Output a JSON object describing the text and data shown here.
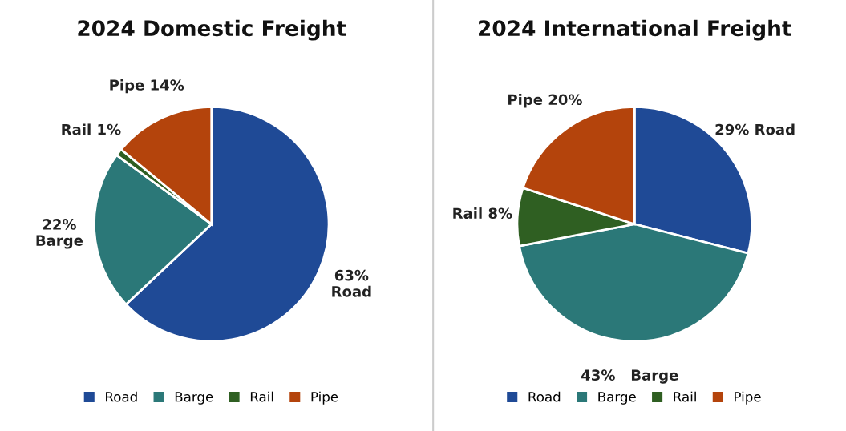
{
  "chart_data": [
    {
      "type": "pie",
      "title": "2024 Domestic Freight",
      "categories": [
        "Road",
        "Barge",
        "Rail",
        "Pipe"
      ],
      "values": [
        63,
        22,
        1,
        14
      ],
      "colors": [
        "#1f4a96",
        "#2b7878",
        "#2f5f22",
        "#b4440c"
      ],
      "value_labels": [
        "63%\nRoad",
        "22%\nBarge",
        "Rail 1%",
        "Pipe 14%"
      ],
      "legend": "bottom"
    },
    {
      "type": "pie",
      "title": "2024 International Freight",
      "categories": [
        "Road",
        "Barge",
        "Rail",
        "Pipe"
      ],
      "values": [
        29,
        43,
        8,
        20
      ],
      "colors": [
        "#1f4a96",
        "#2b7878",
        "#2f5f22",
        "#b4440c"
      ],
      "value_labels": [
        "29% Road",
        "43%   Barge",
        "Rail 8%",
        "Pipe 20%"
      ],
      "legend": "bottom"
    }
  ]
}
